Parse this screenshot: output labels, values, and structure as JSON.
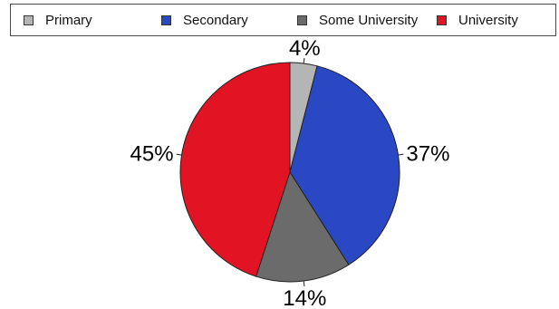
{
  "chart_data": {
    "type": "pie",
    "slices": [
      {
        "label": "Primary",
        "value": 4,
        "display": "4%",
        "color": "#b5b5b5"
      },
      {
        "label": "Secondary",
        "value": 37,
        "display": "37%",
        "color": "#2b48c4"
      },
      {
        "label": "Some University",
        "value": 14,
        "display": "14%",
        "color": "#6b6b6b"
      },
      {
        "label": "University",
        "value": 45,
        "display": "45%",
        "color": "#e21424"
      }
    ],
    "start_angle_deg": 0,
    "direction": "clockwise",
    "legend_position": "top"
  }
}
